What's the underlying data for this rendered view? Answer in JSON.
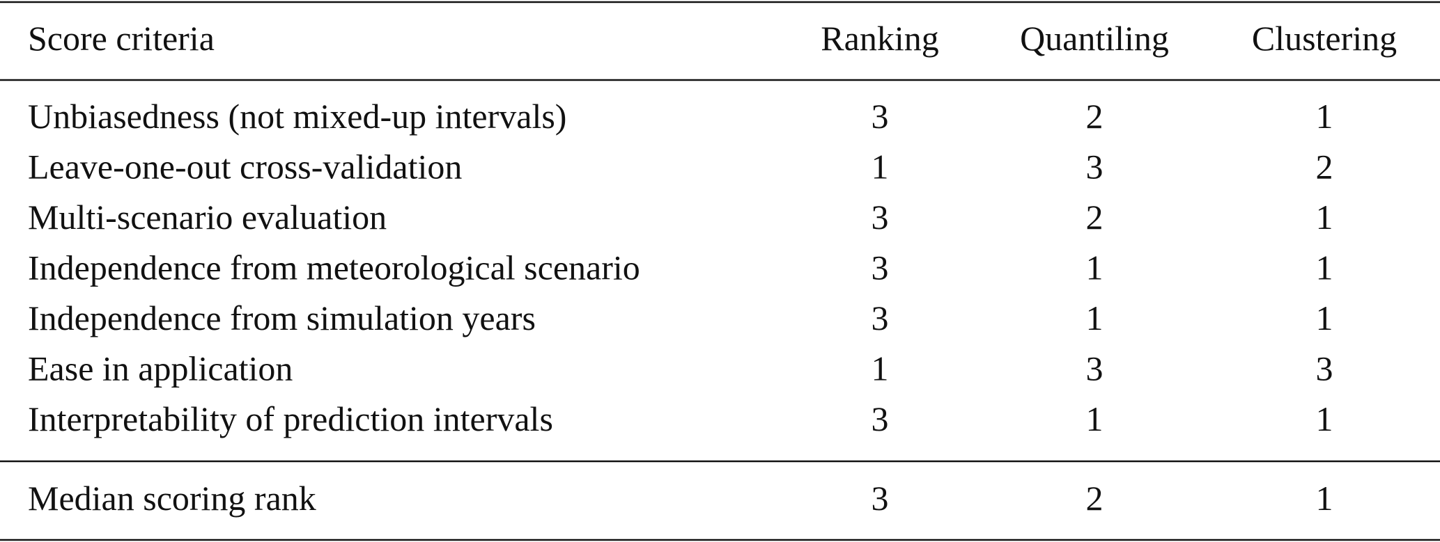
{
  "table": {
    "header": [
      "Score criteria",
      "Ranking",
      "Quantiling",
      "Clustering"
    ],
    "rows": [
      [
        "Unbiasedness (not mixed-up intervals)",
        3,
        2,
        1
      ],
      [
        "Leave-one-out cross-validation",
        1,
        3,
        2
      ],
      [
        "Multi-scenario evaluation",
        3,
        2,
        1
      ],
      [
        "Independence from meteorological scenario",
        3,
        1,
        1
      ],
      [
        "Independence from simulation years",
        3,
        1,
        1
      ],
      [
        "Ease in application",
        1,
        3,
        3
      ],
      [
        "Interpretability of prediction intervals",
        3,
        1,
        1
      ]
    ],
    "footer": [
      "Median scoring rank",
      3,
      2,
      1
    ]
  }
}
